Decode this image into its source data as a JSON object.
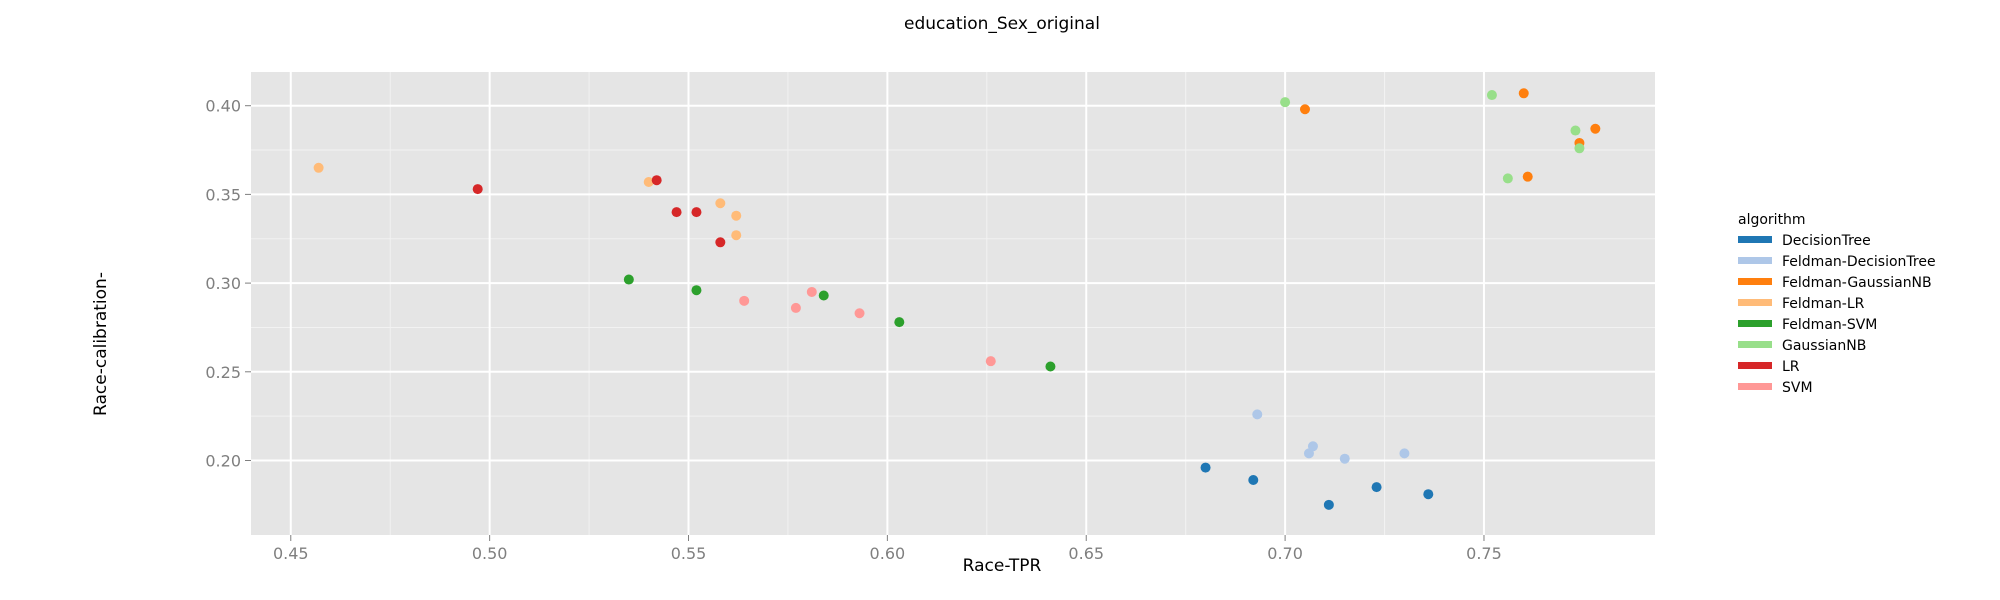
{
  "chart_data": {
    "type": "scatter",
    "title": "education_Sex_original",
    "xlabel": "Race-TPR",
    "ylabel": "Race-calibration-",
    "xlim": [
      0.44,
      0.793
    ],
    "ylim": [
      0.158,
      0.419
    ],
    "x_ticks": [
      0.45,
      0.5,
      0.55,
      0.6,
      0.65,
      0.7,
      0.75
    ],
    "x_tick_labels": [
      "0.45",
      "0.50",
      "0.55",
      "0.60",
      "0.65",
      "0.70",
      "0.75"
    ],
    "y_ticks": [
      0.2,
      0.25,
      0.3,
      0.35,
      0.4
    ],
    "y_tick_labels": [
      "0.20",
      "0.25",
      "0.30",
      "0.35",
      "0.40"
    ],
    "grid": true,
    "legend_title": "algorithm",
    "legend_position": "right",
    "series": [
      {
        "name": "DecisionTree",
        "color": "#1f77b4",
        "points": [
          [
            0.68,
            0.196
          ],
          [
            0.692,
            0.189
          ],
          [
            0.711,
            0.175
          ],
          [
            0.723,
            0.185
          ],
          [
            0.736,
            0.181
          ]
        ]
      },
      {
        "name": "Feldman-DecisionTree",
        "color": "#aec7e8",
        "points": [
          [
            0.693,
            0.226
          ],
          [
            0.706,
            0.204
          ],
          [
            0.707,
            0.208
          ],
          [
            0.715,
            0.201
          ],
          [
            0.73,
            0.204
          ]
        ]
      },
      {
        "name": "Feldman-GaussianNB",
        "color": "#ff7f0e",
        "points": [
          [
            0.705,
            0.398
          ],
          [
            0.76,
            0.407
          ],
          [
            0.761,
            0.36
          ],
          [
            0.774,
            0.379
          ],
          [
            0.778,
            0.387
          ]
        ]
      },
      {
        "name": "Feldman-LR",
        "color": "#ffbb78",
        "points": [
          [
            0.457,
            0.365
          ],
          [
            0.54,
            0.357
          ],
          [
            0.558,
            0.345
          ],
          [
            0.562,
            0.338
          ],
          [
            0.562,
            0.327
          ]
        ]
      },
      {
        "name": "Feldman-SVM",
        "color": "#2ca02c",
        "points": [
          [
            0.535,
            0.302
          ],
          [
            0.552,
            0.296
          ],
          [
            0.584,
            0.293
          ],
          [
            0.603,
            0.278
          ],
          [
            0.641,
            0.253
          ]
        ]
      },
      {
        "name": "GaussianNB",
        "color": "#98df8a",
        "points": [
          [
            0.7,
            0.402
          ],
          [
            0.752,
            0.406
          ],
          [
            0.756,
            0.359
          ],
          [
            0.773,
            0.386
          ],
          [
            0.774,
            0.376
          ]
        ]
      },
      {
        "name": "LR",
        "color": "#d62728",
        "points": [
          [
            0.497,
            0.353
          ],
          [
            0.542,
            0.358
          ],
          [
            0.547,
            0.34
          ],
          [
            0.552,
            0.34
          ],
          [
            0.558,
            0.323
          ]
        ]
      },
      {
        "name": "SVM",
        "color": "#ff9896",
        "points": [
          [
            0.564,
            0.29
          ],
          [
            0.577,
            0.286
          ],
          [
            0.581,
            0.295
          ],
          [
            0.593,
            0.283
          ],
          [
            0.626,
            0.256
          ]
        ]
      }
    ]
  }
}
